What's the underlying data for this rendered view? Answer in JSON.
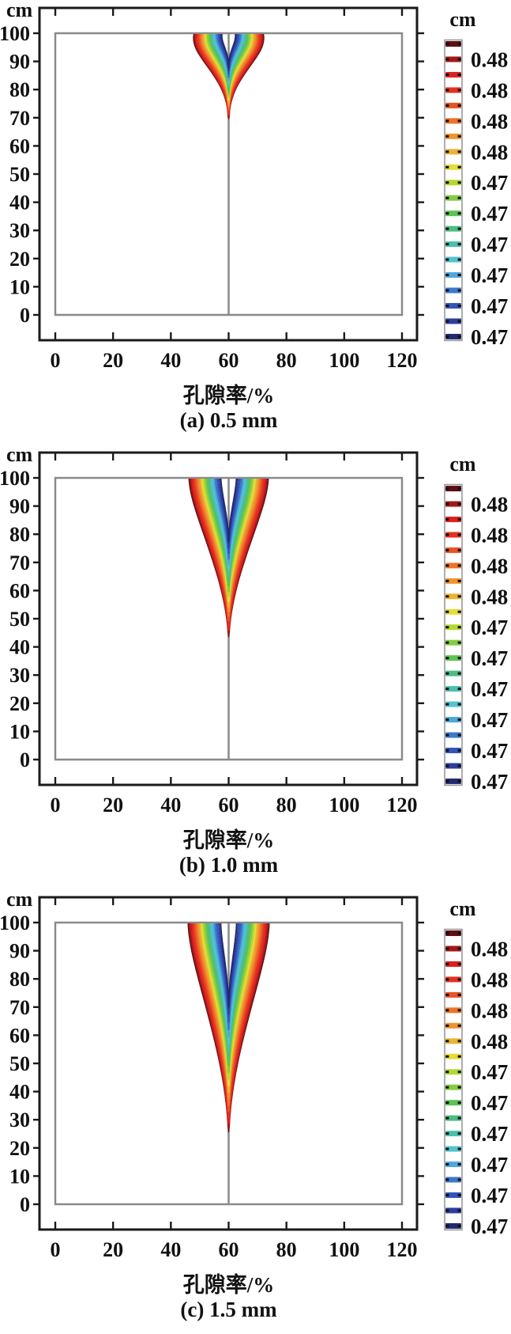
{
  "contour_colors": [
    "#5f0e14",
    "#a01a1a",
    "#dd2020",
    "#e53122",
    "#ea5325",
    "#ee7428",
    "#f09430",
    "#eab434",
    "#e4dd3c",
    "#b4d832",
    "#84cc44",
    "#5cc455",
    "#4cbd85",
    "#4cc0ae",
    "#54c4cd",
    "#4fa8dc",
    "#3c78cc",
    "#3454bc",
    "#2c3f9e",
    "#232a70"
  ],
  "frame_color": "#1a1a1a",
  "domain_color": "#8a8a8a",
  "chart_data": [
    {
      "type": "contour",
      "panel_id": "a",
      "caption": "(a) 0.5 mm",
      "xlabel": "孔隙率/%",
      "ylabel": "cm",
      "xlim": [
        0,
        120
      ],
      "ylim": [
        0,
        100
      ],
      "x_ticks": [
        0,
        20,
        40,
        60,
        80,
        100,
        120
      ],
      "y_ticks": [
        0,
        10,
        20,
        30,
        40,
        50,
        60,
        70,
        80,
        90,
        100
      ],
      "injection_x": 60,
      "plume": {
        "top_half_width_x": 12,
        "tip_y_cm": 70,
        "shape": "bulb"
      },
      "colorbar": {
        "title": "cm",
        "labels": [
          "0.48",
          "0.48",
          "0.48",
          "0.48",
          "0.47",
          "0.47",
          "0.47",
          "0.47",
          "0.47",
          "0.47"
        ]
      }
    },
    {
      "type": "contour",
      "panel_id": "b",
      "caption": "(b) 1.0 mm",
      "xlabel": "孔隙率/%",
      "ylabel": "cm",
      "xlim": [
        0,
        120
      ],
      "ylim": [
        0,
        100
      ],
      "x_ticks": [
        0,
        20,
        40,
        60,
        80,
        100,
        120
      ],
      "y_ticks": [
        0,
        10,
        20,
        30,
        40,
        50,
        60,
        70,
        80,
        90,
        100
      ],
      "injection_x": 60,
      "plume": {
        "top_half_width_x": 13.7,
        "tip_y_cm": 44,
        "shape": "funnel"
      },
      "colorbar": {
        "title": "cm",
        "labels": [
          "0.48",
          "0.48",
          "0.48",
          "0.48",
          "0.47",
          "0.47",
          "0.47",
          "0.47",
          "0.47",
          "0.47"
        ]
      }
    },
    {
      "type": "contour",
      "panel_id": "c",
      "caption": "(c) 1.5 mm",
      "xlabel": "孔隙率/%",
      "ylabel": "cm",
      "xlim": [
        0,
        120
      ],
      "ylim": [
        0,
        100
      ],
      "x_ticks": [
        0,
        20,
        40,
        60,
        80,
        100,
        120
      ],
      "y_ticks": [
        0,
        10,
        20,
        30,
        40,
        50,
        60,
        70,
        80,
        90,
        100
      ],
      "injection_x": 60,
      "plume": {
        "top_half_width_x": 14,
        "tip_y_cm": 26,
        "shape": "funnel"
      },
      "colorbar": {
        "title": "cm",
        "labels": [
          "0.48",
          "0.48",
          "0.48",
          "0.48",
          "0.47",
          "0.47",
          "0.47",
          "0.47",
          "0.47",
          "0.47"
        ]
      }
    }
  ]
}
